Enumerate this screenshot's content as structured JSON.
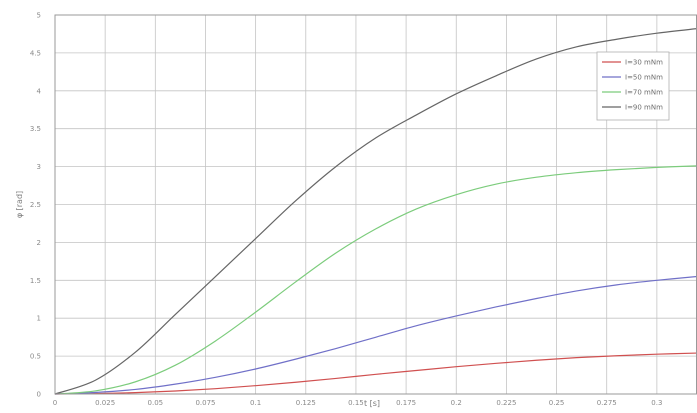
{
  "chart_data": {
    "type": "line",
    "title": "",
    "xlabel": "t [s]",
    "ylabel": "φ [rad]",
    "xlim": [
      0,
      0.32
    ],
    "ylim": [
      0,
      5
    ],
    "grid": true,
    "legend_position": "top-right",
    "x_ticks": [
      {
        "value": 0,
        "label": "0"
      },
      {
        "value": 0.025,
        "label": "0.025"
      },
      {
        "value": 0.05,
        "label": "0.05"
      },
      {
        "value": 0.075,
        "label": "0.075"
      },
      {
        "value": 0.1,
        "label": "0.1"
      },
      {
        "value": 0.125,
        "label": "0.125"
      },
      {
        "value": 0.15,
        "label": "0.15"
      },
      {
        "value": 0.175,
        "label": "0.175"
      },
      {
        "value": 0.2,
        "label": "0.2"
      },
      {
        "value": 0.225,
        "label": "0.225"
      },
      {
        "value": 0.25,
        "label": "0.25"
      },
      {
        "value": 0.275,
        "label": "0.275"
      },
      {
        "value": 0.3,
        "label": "0.3"
      }
    ],
    "y_ticks": [
      {
        "value": 0,
        "label": "0"
      },
      {
        "value": 0.5,
        "label": "0.5"
      },
      {
        "value": 1,
        "label": "1"
      },
      {
        "value": 1.5,
        "label": "1.5"
      },
      {
        "value": 2,
        "label": "2"
      },
      {
        "value": 2.5,
        "label": "2.5"
      },
      {
        "value": 3,
        "label": "3"
      },
      {
        "value": 3.5,
        "label": "3.5"
      },
      {
        "value": 4,
        "label": "4"
      },
      {
        "value": 4.5,
        "label": "4.5"
      },
      {
        "value": 5,
        "label": "5"
      }
    ],
    "series": [
      {
        "name": "I=30 mNm",
        "color": "#d05050",
        "x": [
          0,
          0.02,
          0.04,
          0.06,
          0.08,
          0.1,
          0.12,
          0.14,
          0.16,
          0.18,
          0.2,
          0.22,
          0.24,
          0.26,
          0.28,
          0.3,
          0.32
        ],
        "y": [
          0,
          0.005,
          0.018,
          0.04,
          0.07,
          0.11,
          0.155,
          0.205,
          0.26,
          0.31,
          0.36,
          0.405,
          0.445,
          0.48,
          0.505,
          0.525,
          0.54
        ]
      },
      {
        "name": "I=50 mNm",
        "color": "#7070c8",
        "x": [
          0,
          0.02,
          0.04,
          0.06,
          0.08,
          0.1,
          0.12,
          0.14,
          0.16,
          0.18,
          0.2,
          0.22,
          0.24,
          0.26,
          0.28,
          0.3,
          0.32
        ],
        "y": [
          0,
          0.02,
          0.06,
          0.13,
          0.22,
          0.33,
          0.46,
          0.6,
          0.75,
          0.9,
          1.03,
          1.15,
          1.26,
          1.36,
          1.44,
          1.5,
          1.55
        ]
      },
      {
        "name": "I=70 mNm",
        "color": "#7ccc7c",
        "x": [
          0,
          0.02,
          0.04,
          0.06,
          0.08,
          0.1,
          0.12,
          0.14,
          0.16,
          0.18,
          0.2,
          0.22,
          0.24,
          0.26,
          0.28,
          0.3,
          0.32
        ],
        "y": [
          0,
          0.04,
          0.16,
          0.38,
          0.7,
          1.08,
          1.48,
          1.86,
          2.18,
          2.44,
          2.63,
          2.77,
          2.86,
          2.92,
          2.96,
          2.99,
          3.01
        ]
      },
      {
        "name": "I=90 mNm",
        "color": "#666666",
        "x": [
          0,
          0.02,
          0.04,
          0.06,
          0.08,
          0.1,
          0.12,
          0.14,
          0.16,
          0.18,
          0.2,
          0.22,
          0.24,
          0.26,
          0.28,
          0.3,
          0.32
        ],
        "y": [
          0,
          0.18,
          0.55,
          1.05,
          1.55,
          2.05,
          2.55,
          3.0,
          3.38,
          3.68,
          3.96,
          4.2,
          4.42,
          4.58,
          4.68,
          4.76,
          4.82
        ]
      }
    ]
  }
}
